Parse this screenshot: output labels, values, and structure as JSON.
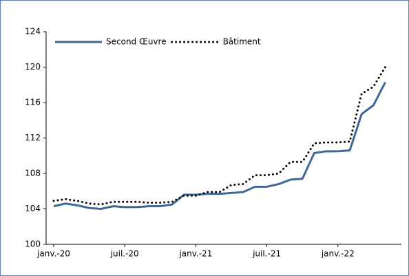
{
  "chart_data": {
    "type": "line",
    "categories": [
      "janv.-20",
      null,
      null,
      null,
      null,
      null,
      "juil.-20",
      null,
      null,
      null,
      null,
      null,
      "janv.-21",
      null,
      null,
      null,
      null,
      null,
      "juil.-21",
      null,
      null,
      null,
      null,
      null,
      "janv.-22",
      null,
      null,
      null,
      null
    ],
    "series": [
      {
        "name": "Second Œuvre",
        "color": "#3f6797",
        "dash": "solid",
        "values": [
          104.3,
          104.6,
          104.4,
          104.1,
          104.0,
          104.3,
          104.2,
          104.2,
          104.3,
          104.3,
          104.5,
          105.6,
          105.6,
          105.7,
          105.7,
          105.8,
          105.9,
          106.5,
          106.5,
          106.8,
          107.3,
          107.4,
          110.3,
          110.5,
          110.5,
          110.6,
          114.7,
          115.7,
          118.3
        ]
      },
      {
        "name": "Bâtiment",
        "color": "#000000",
        "dash": "dotted",
        "values": [
          104.9,
          105.1,
          104.9,
          104.6,
          104.5,
          104.8,
          104.8,
          104.8,
          104.7,
          104.7,
          104.8,
          105.5,
          105.5,
          105.9,
          105.9,
          106.7,
          106.8,
          107.8,
          107.8,
          108.0,
          109.3,
          109.3,
          111.4,
          111.5,
          111.5,
          111.6,
          117.0,
          117.8,
          120.0
        ]
      }
    ],
    "ylim": [
      100,
      124
    ],
    "yticks": [
      100,
      104,
      108,
      112,
      116,
      120,
      124
    ],
    "grid": false,
    "legend": "top-left"
  }
}
